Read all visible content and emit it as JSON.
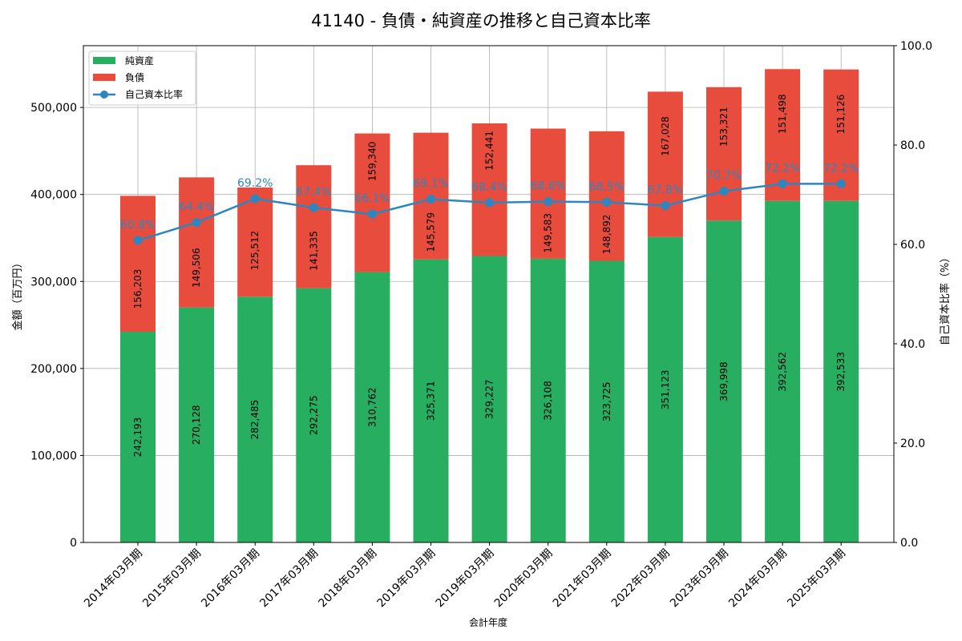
{
  "chart_data": {
    "type": "bar",
    "title": "41140 - 負債・純資産の推移と自己資本比率",
    "xlabel": "会計年度",
    "ylabel": "金額（百万円）",
    "y2label": "自己資本比率（%）",
    "ylim": [
      0,
      571000
    ],
    "y2lim": [
      0,
      100
    ],
    "yticks": [
      0,
      100000,
      200000,
      300000,
      400000,
      500000
    ],
    "ytick_labels": [
      "0",
      "100,000",
      "200,000",
      "300,000",
      "400,000",
      "500,000"
    ],
    "y2ticks": [
      0,
      20,
      40,
      60,
      80,
      100
    ],
    "y2tick_labels": [
      "0.0",
      "20.0",
      "40.0",
      "60.0",
      "80.0",
      "100.0"
    ],
    "grid": true,
    "legend_position": "top-left",
    "categories": [
      "2014年03月期",
      "2015年03月期",
      "2016年03月期",
      "2017年03月期",
      "2018年03月期",
      "2019年03月期",
      "2019年03月期",
      "2020年03月期",
      "2021年03月期",
      "2022年03月期",
      "2023年03月期",
      "2024年03月期",
      "2025年03月期"
    ],
    "series": [
      {
        "name": "純資産",
        "kind": "bar",
        "color": "#27ae60",
        "values": [
          242193,
          270128,
          282485,
          292275,
          310762,
          325371,
          329227,
          326108,
          323725,
          351123,
          369998,
          392562,
          392533
        ],
        "labels": [
          "242,193",
          "270,128",
          "282,485",
          "292,275",
          "310,762",
          "325,371",
          "329,227",
          "326,108",
          "323,725",
          "351,123",
          "369,998",
          "392,562",
          "392,533"
        ]
      },
      {
        "name": "負債",
        "kind": "bar-stacked",
        "color": "#e74c3c",
        "values": [
          156203,
          149506,
          125512,
          141335,
          159340,
          145579,
          152441,
          149583,
          148892,
          167028,
          153321,
          151498,
          151126
        ],
        "labels": [
          "156,203",
          "149,506",
          "125,512",
          "141,335",
          "159,340",
          "145,579",
          "152,441",
          "149,583",
          "148,892",
          "167,028",
          "153,321",
          "151,498",
          "151,126"
        ]
      },
      {
        "name": "自己資本比率",
        "kind": "line",
        "axis": "right",
        "color": "#2e86c1",
        "values": [
          60.8,
          64.4,
          69.2,
          67.4,
          66.1,
          69.1,
          68.4,
          68.6,
          68.5,
          67.8,
          70.7,
          72.2,
          72.2
        ],
        "labels": [
          "60.8%",
          "64.4%",
          "69.2%",
          "67.4%",
          "66.1%",
          "69.1%",
          "68.4%",
          "68.6%",
          "68.5%",
          "67.8%",
          "70.7%",
          "72.2%",
          "72.2%"
        ]
      }
    ]
  }
}
